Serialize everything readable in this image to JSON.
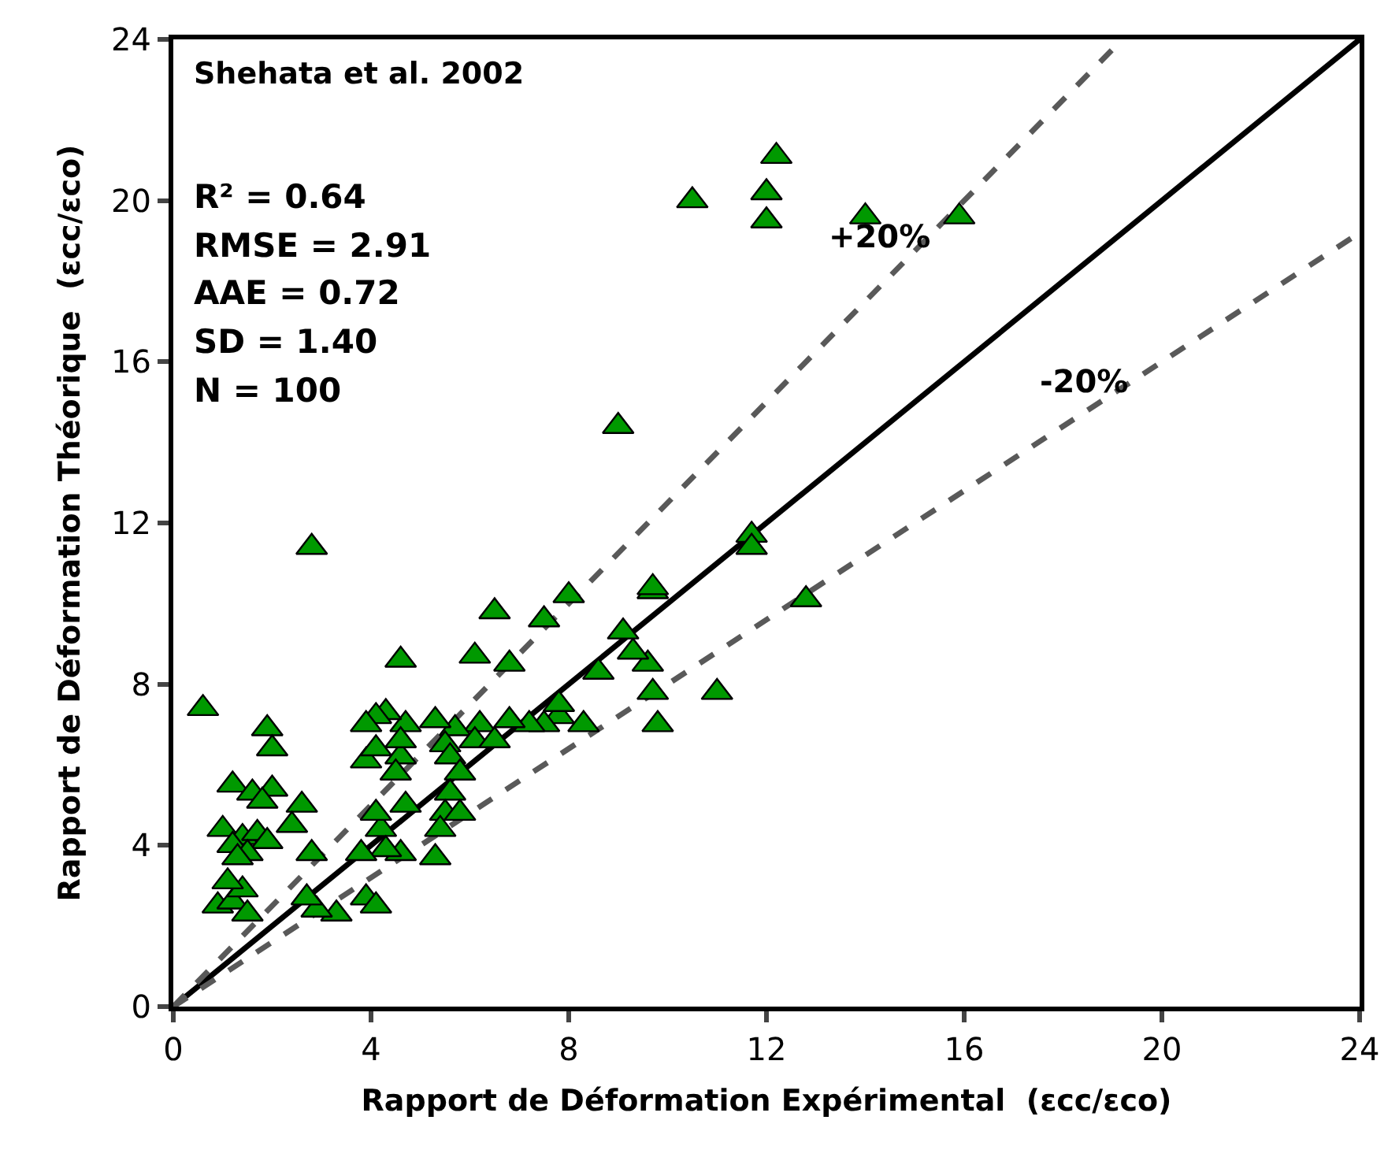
{
  "chart_data": {
    "type": "scatter",
    "xlabel": "Rapport de Déformation Expérimental  (εcc/εco)",
    "ylabel": "Rapport de Déformation Théorique  (εcc/εco)",
    "xlim": [
      0,
      24
    ],
    "ylim": [
      0,
      24
    ],
    "xticks": [
      0,
      4,
      8,
      12,
      16,
      20,
      24
    ],
    "yticks": [
      0,
      4,
      8,
      12,
      16,
      20,
      24
    ],
    "legend": false,
    "series": [
      {
        "marker": "triangle",
        "color": "#009900",
        "x": [
          0.6,
          2.8,
          9.0,
          10.5,
          12.2,
          12.0,
          12.0,
          14.0,
          15.9,
          11.7,
          11.7,
          12.8,
          11.0,
          9.8,
          9.7,
          9.6,
          9.3,
          9.1,
          9.7,
          9.7,
          8.0,
          7.5,
          6.5,
          6.1,
          6.8,
          4.6,
          8.6,
          8.3,
          7.8,
          7.5,
          7.2,
          7.8,
          6.8,
          6.2,
          5.7,
          5.3,
          4.7,
          4.3,
          4.1,
          3.9,
          3.9,
          4.1,
          4.6,
          4.6,
          5.5,
          6.1,
          6.5,
          5.6,
          5.8,
          5.6,
          4.5,
          4.7,
          5.5,
          5.8,
          5.4,
          5.3,
          4.6,
          4.2,
          4.1,
          4.3,
          3.8,
          3.9,
          4.1,
          3.3,
          2.9,
          2.7,
          2.8,
          2.6,
          2.4,
          1.9,
          2.0,
          1.2,
          1.6,
          2.0,
          1.8,
          1.0,
          1.4,
          1.7,
          1.9,
          1.2,
          1.5,
          1.3,
          0.9,
          1.2,
          1.5,
          1.4,
          1.1
        ],
        "values": [
          7.4,
          11.4,
          14.4,
          20.0,
          21.1,
          20.2,
          19.5,
          19.6,
          19.6,
          11.7,
          11.4,
          10.1,
          7.8,
          7.0,
          7.8,
          8.5,
          8.8,
          9.3,
          10.3,
          10.4,
          10.2,
          9.6,
          9.8,
          8.7,
          8.5,
          8.6,
          8.3,
          7.0,
          7.2,
          7.0,
          7.0,
          7.5,
          7.1,
          7.0,
          6.9,
          7.1,
          7.0,
          7.3,
          7.2,
          7.0,
          6.1,
          6.4,
          6.2,
          6.6,
          6.5,
          6.6,
          6.6,
          6.2,
          5.8,
          5.3,
          5.8,
          5.0,
          4.8,
          4.8,
          4.4,
          3.7,
          3.8,
          4.4,
          4.8,
          3.9,
          3.8,
          2.7,
          2.5,
          2.3,
          2.4,
          2.7,
          3.8,
          5.0,
          4.5,
          6.9,
          6.4,
          5.5,
          5.3,
          5.4,
          5.1,
          4.4,
          4.2,
          4.3,
          4.1,
          4.0,
          3.8,
          3.7,
          2.5,
          2.6,
          2.3,
          2.9,
          3.1
        ]
      },
      {
        "type": "line",
        "color": "#000000",
        "line_style": "solid",
        "x": [
          0,
          24
        ],
        "values": [
          0,
          24
        ]
      },
      {
        "type": "line",
        "color": "#595959",
        "line_style": "dashed",
        "x": [
          0,
          19.2
        ],
        "values": [
          0,
          24
        ]
      },
      {
        "type": "line",
        "color": "#595959",
        "line_style": "dashed",
        "x": [
          0,
          24
        ],
        "values": [
          0,
          19.2
        ]
      }
    ],
    "annotations": [
      "Shehata et al. 2002",
      "R² = 0.64",
      "RMSE = 2.91",
      "AAE = 0.72",
      "SD = 1.40",
      "N = 100",
      "+20%",
      "-20%"
    ]
  }
}
